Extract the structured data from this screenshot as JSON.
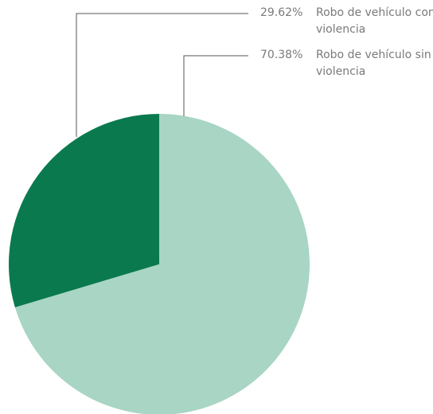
{
  "chart_data": {
    "type": "pie",
    "categories": [
      "Robo de vehículo con violencia",
      "Robo de vehículo sin violencia"
    ],
    "values": [
      29.62,
      70.38
    ],
    "value_labels": [
      "29.62%",
      "70.38%"
    ],
    "colors": [
      "#0a7a4e",
      "#a8d5c4"
    ]
  }
}
